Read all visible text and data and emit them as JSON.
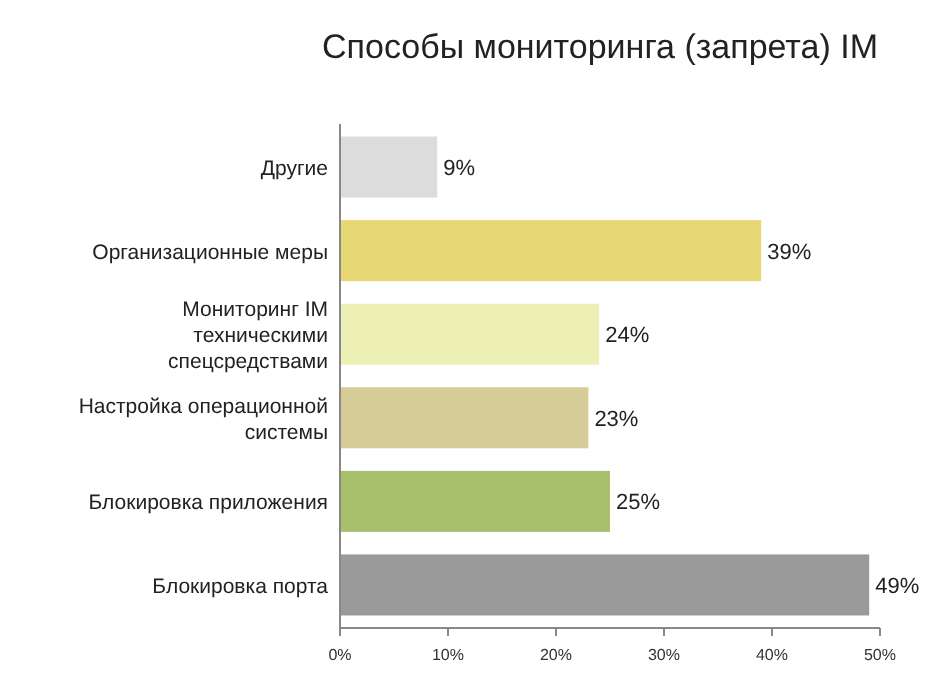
{
  "chart_data": {
    "type": "bar",
    "orientation": "horizontal",
    "title": "Способы мониторинга (запрета) IM",
    "categories": [
      "Другие",
      "Организационные меры",
      "Мониторинг IM техническими спецсредствами",
      "Настройка операционной системы",
      "Блокировка приложения",
      "Блокировка порта"
    ],
    "values": [
      9,
      39,
      24,
      23,
      25,
      49
    ],
    "value_labels": [
      "9%",
      "39%",
      "24%",
      "23%",
      "25%",
      "49%"
    ],
    "colors": [
      "#dcdcdc",
      "#e8d874",
      "#ecf0b4",
      "#d6cc98",
      "#a8bf6c",
      "#9a9a9a"
    ],
    "xlim": [
      0,
      50
    ],
    "xticks": [
      {
        "value": 0,
        "label": "0%"
      },
      {
        "value": 10,
        "label": "10%"
      },
      {
        "value": 20,
        "label": "20%"
      },
      {
        "value": 30,
        "label": "30%"
      },
      {
        "value": 40,
        "label": "40%"
      },
      {
        "value": 50,
        "label": "50%"
      }
    ],
    "grid": false
  }
}
